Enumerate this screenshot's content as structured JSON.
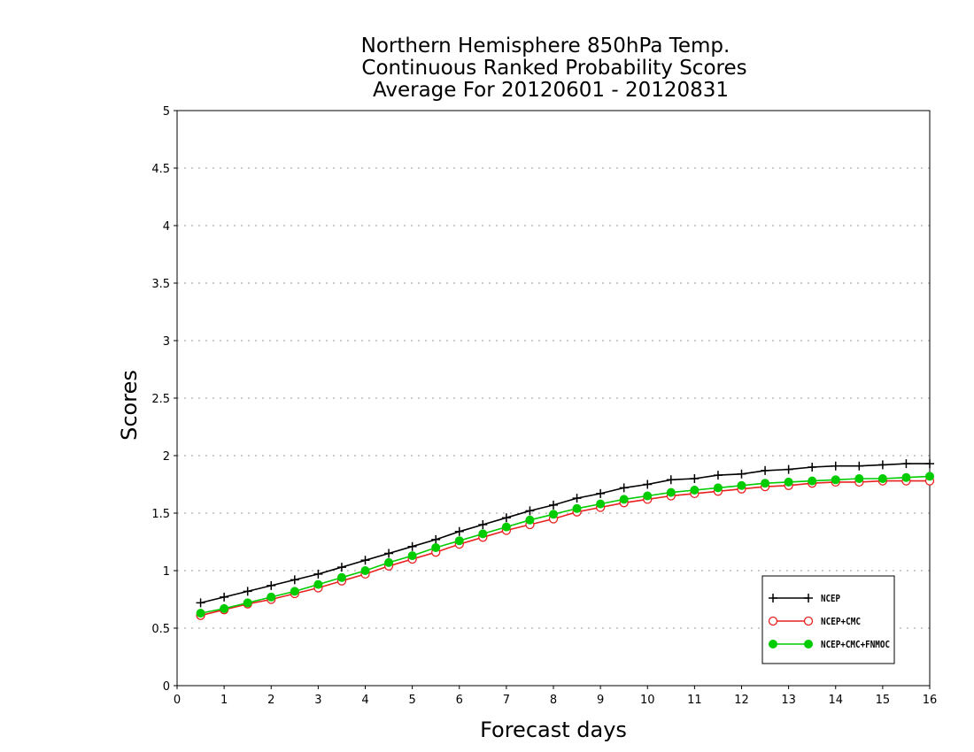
{
  "chart_data": {
    "type": "line",
    "title_lines": [
      "Northern Hemisphere 850hPa Temp.",
      "Continuous Ranked Probability Scores",
      "Average For 20120601 - 20120831"
    ],
    "xlabel": "Forecast days",
    "ylabel": "Scores",
    "xlim": [
      0,
      16
    ],
    "ylim": [
      0,
      5
    ],
    "xticks": [
      "0",
      "1",
      "2",
      "3",
      "4",
      "5",
      "6",
      "7",
      "8",
      "9",
      "10",
      "11",
      "12",
      "13",
      "14",
      "15",
      "16"
    ],
    "yticks": [
      "0",
      "0.5",
      "1",
      "1.5",
      "2",
      "2.5",
      "3",
      "3.5",
      "4",
      "4.5",
      "5"
    ],
    "grid": "horizontal dotted",
    "legend_position": "bottom-right",
    "x": [
      0.5,
      1,
      1.5,
      2,
      2.5,
      3,
      3.5,
      4,
      4.5,
      5,
      5.5,
      6,
      6.5,
      7,
      7.5,
      8,
      8.5,
      9,
      9.5,
      10,
      10.5,
      11,
      11.5,
      12,
      12.5,
      13,
      13.5,
      14,
      14.5,
      15,
      15.5,
      16
    ],
    "series": [
      {
        "name": "NCEP",
        "color": "#000000",
        "marker": "plus",
        "values": [
          0.72,
          0.77,
          0.82,
          0.87,
          0.92,
          0.97,
          1.03,
          1.09,
          1.15,
          1.21,
          1.27,
          1.34,
          1.4,
          1.46,
          1.52,
          1.57,
          1.63,
          1.67,
          1.72,
          1.75,
          1.79,
          1.8,
          1.83,
          1.84,
          1.87,
          1.88,
          1.9,
          1.91,
          1.91,
          1.92,
          1.93,
          1.93
        ]
      },
      {
        "name": "NCEP+CMC",
        "color": "#e82020",
        "marker": "open-circle",
        "values": [
          0.61,
          0.66,
          0.71,
          0.75,
          0.8,
          0.85,
          0.91,
          0.97,
          1.04,
          1.1,
          1.16,
          1.23,
          1.29,
          1.35,
          1.4,
          1.45,
          1.51,
          1.55,
          1.59,
          1.62,
          1.65,
          1.67,
          1.69,
          1.71,
          1.73,
          1.74,
          1.76,
          1.77,
          1.77,
          1.78,
          1.78,
          1.78
        ]
      },
      {
        "name": "NCEP+CMC+FNMOC",
        "color": "#00cc00",
        "marker": "filled-circle",
        "values": [
          0.63,
          0.67,
          0.72,
          0.77,
          0.82,
          0.88,
          0.94,
          1.0,
          1.07,
          1.13,
          1.2,
          1.26,
          1.32,
          1.38,
          1.44,
          1.49,
          1.54,
          1.58,
          1.62,
          1.65,
          1.68,
          1.7,
          1.72,
          1.74,
          1.76,
          1.77,
          1.78,
          1.79,
          1.8,
          1.8,
          1.81,
          1.82
        ]
      }
    ]
  }
}
